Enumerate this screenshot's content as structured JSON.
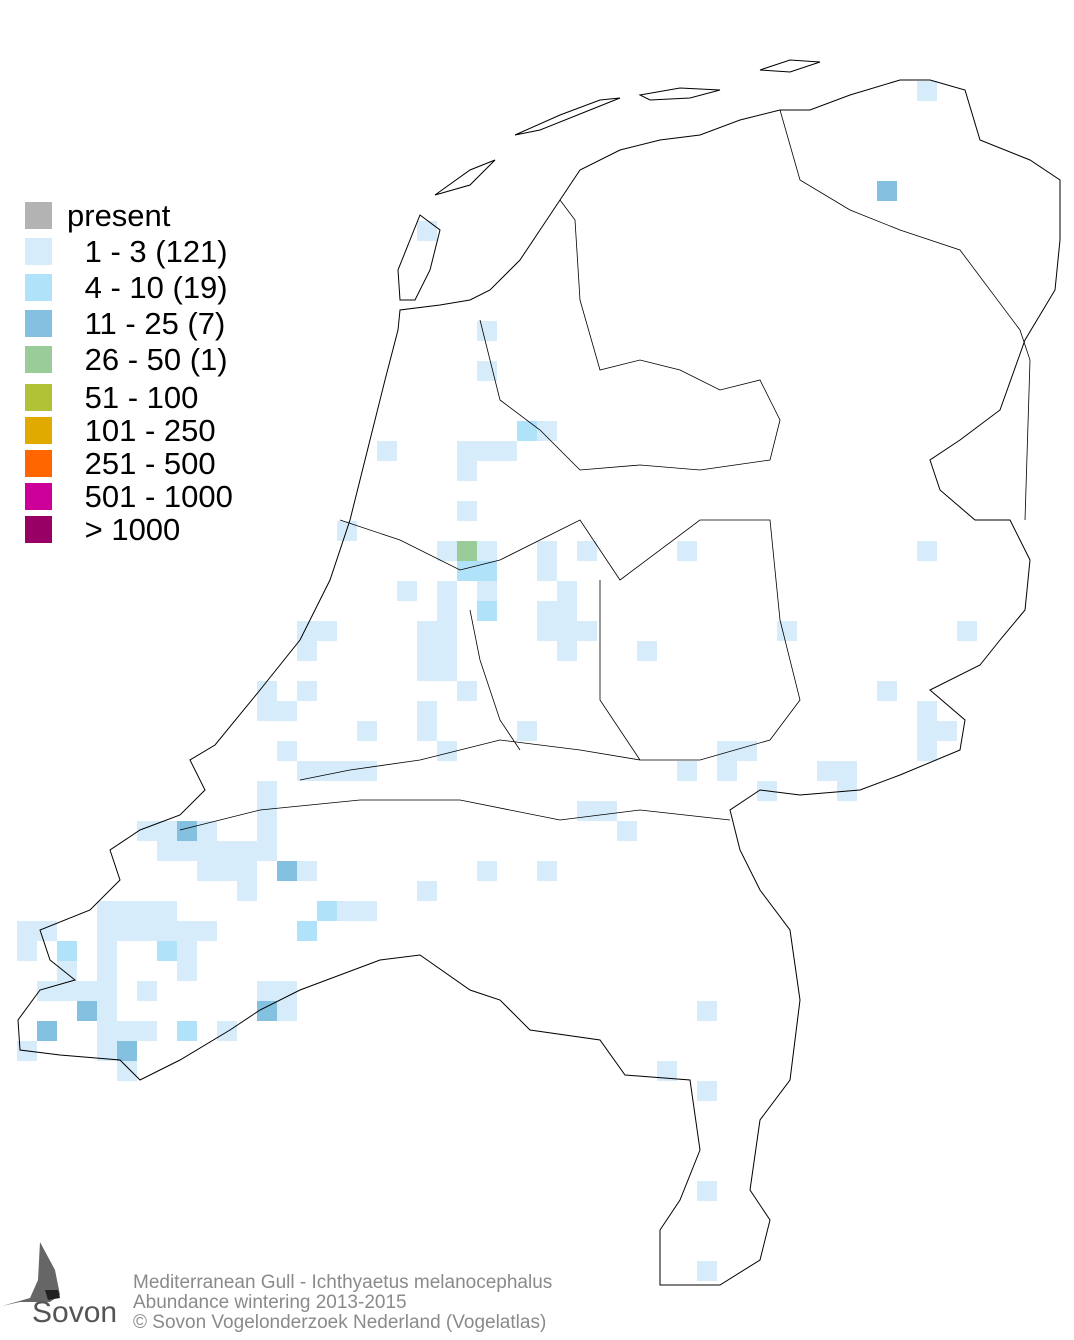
{
  "legend": {
    "items": [
      {
        "label": "present",
        "color": "#b3b3b3"
      },
      {
        "label": " 1 - 3 (121)",
        "color": "#d6ecfa"
      },
      {
        "label": " 4 - 10 (19)",
        "color": "#b0e2fa"
      },
      {
        "label": " 11 - 25 (7)",
        "color": "#84c0df"
      },
      {
        "label": " 26 - 50 (1)",
        "color": "#99cc99"
      },
      {
        "label": " 51 - 100",
        "color": "#b1c237"
      },
      {
        "label": " 101 - 250",
        "color": "#e0aa00"
      },
      {
        "label": " 251 - 500",
        "color": "#ff6600"
      },
      {
        "label": " 501 - 1000",
        "color": "#cc0099"
      },
      {
        "label": " > 1000",
        "color": "#990066"
      }
    ]
  },
  "caption": {
    "line1": "Mediterranean Gull - Ichthyaetus melanocephalus",
    "line2": "Abundance wintering 2013-2015",
    "line3": "© Sovon Vogelonderzoek Nederland (Vogelatlas)"
  },
  "logo": {
    "text": "Sovon"
  }
}
